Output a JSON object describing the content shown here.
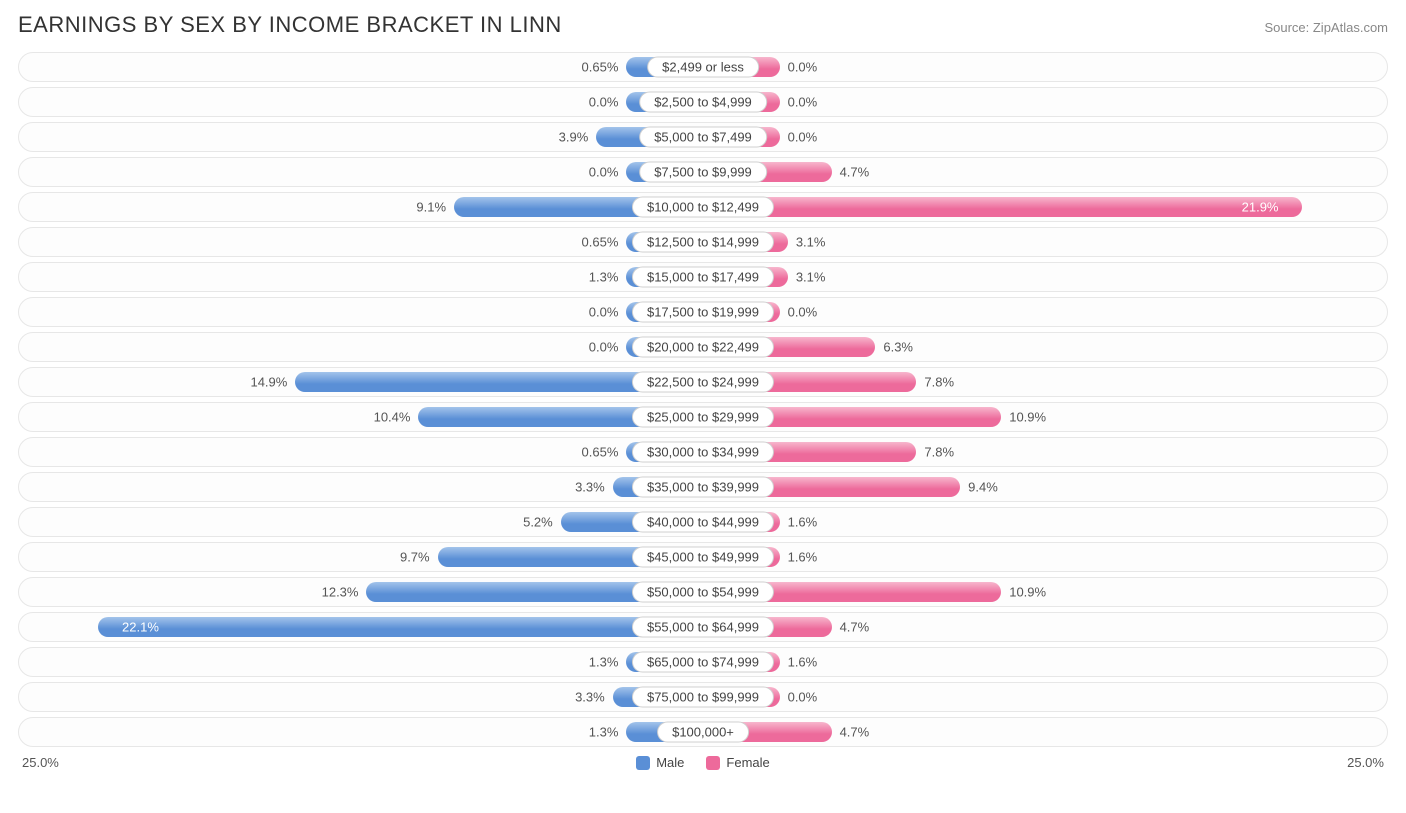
{
  "title": "EARNINGS BY SEX BY INCOME BRACKET IN LINN",
  "source": "Source: ZipAtlas.com",
  "axis_max_pct": 25.0,
  "axis_end_left": "25.0%",
  "axis_end_right": "25.0%",
  "male_min_bar_pct": 2.8,
  "female_min_bar_pct": 2.8,
  "colors": {
    "male_light": "#a3c4eb",
    "male_dark": "#5a8fd6",
    "female_light": "#f7b6cd",
    "female_dark": "#ed6a9b",
    "track_border": "#e7e7e7",
    "pill_border": "#d0d0d0",
    "text": "#555555",
    "title": "#333333",
    "source": "#888888",
    "background": "#ffffff"
  },
  "legend": {
    "male": "Male",
    "female": "Female"
  },
  "rows": [
    {
      "label": "$2,499 or less",
      "male": 0.65,
      "male_label": "0.65%",
      "female": 0.0,
      "female_label": "0.0%"
    },
    {
      "label": "$2,500 to $4,999",
      "male": 0.0,
      "male_label": "0.0%",
      "female": 0.0,
      "female_label": "0.0%"
    },
    {
      "label": "$5,000 to $7,499",
      "male": 3.9,
      "male_label": "3.9%",
      "female": 0.0,
      "female_label": "0.0%"
    },
    {
      "label": "$7,500 to $9,999",
      "male": 0.0,
      "male_label": "0.0%",
      "female": 4.7,
      "female_label": "4.7%"
    },
    {
      "label": "$10,000 to $12,499",
      "male": 9.1,
      "male_label": "9.1%",
      "female": 21.9,
      "female_label": "21.9%"
    },
    {
      "label": "$12,500 to $14,999",
      "male": 0.65,
      "male_label": "0.65%",
      "female": 3.1,
      "female_label": "3.1%"
    },
    {
      "label": "$15,000 to $17,499",
      "male": 1.3,
      "male_label": "1.3%",
      "female": 3.1,
      "female_label": "3.1%"
    },
    {
      "label": "$17,500 to $19,999",
      "male": 0.0,
      "male_label": "0.0%",
      "female": 0.0,
      "female_label": "0.0%"
    },
    {
      "label": "$20,000 to $22,499",
      "male": 0.0,
      "male_label": "0.0%",
      "female": 6.3,
      "female_label": "6.3%"
    },
    {
      "label": "$22,500 to $24,999",
      "male": 14.9,
      "male_label": "14.9%",
      "female": 7.8,
      "female_label": "7.8%"
    },
    {
      "label": "$25,000 to $29,999",
      "male": 10.4,
      "male_label": "10.4%",
      "female": 10.9,
      "female_label": "10.9%"
    },
    {
      "label": "$30,000 to $34,999",
      "male": 0.65,
      "male_label": "0.65%",
      "female": 7.8,
      "female_label": "7.8%"
    },
    {
      "label": "$35,000 to $39,999",
      "male": 3.3,
      "male_label": "3.3%",
      "female": 9.4,
      "female_label": "9.4%"
    },
    {
      "label": "$40,000 to $44,999",
      "male": 5.2,
      "male_label": "5.2%",
      "female": 1.6,
      "female_label": "1.6%"
    },
    {
      "label": "$45,000 to $49,999",
      "male": 9.7,
      "male_label": "9.7%",
      "female": 1.6,
      "female_label": "1.6%"
    },
    {
      "label": "$50,000 to $54,999",
      "male": 12.3,
      "male_label": "12.3%",
      "female": 10.9,
      "female_label": "10.9%"
    },
    {
      "label": "$55,000 to $64,999",
      "male": 22.1,
      "male_label": "22.1%",
      "female": 4.7,
      "female_label": "4.7%"
    },
    {
      "label": "$65,000 to $74,999",
      "male": 1.3,
      "male_label": "1.3%",
      "female": 1.6,
      "female_label": "1.6%"
    },
    {
      "label": "$75,000 to $99,999",
      "male": 3.3,
      "male_label": "3.3%",
      "female": 0.0,
      "female_label": "0.0%"
    },
    {
      "label": "$100,000+",
      "male": 1.3,
      "male_label": "1.3%",
      "female": 4.7,
      "female_label": "4.7%"
    }
  ]
}
